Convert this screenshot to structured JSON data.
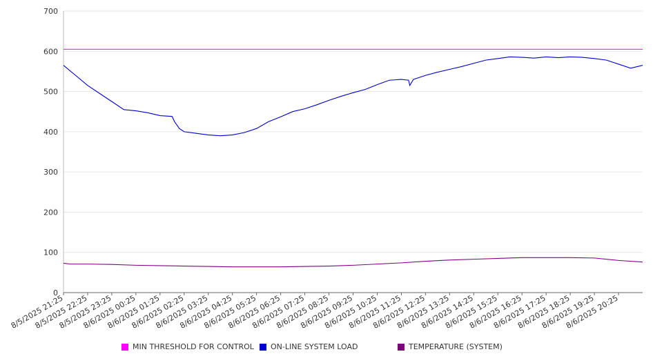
{
  "chart_data": {
    "type": "line",
    "title": "",
    "xlabel": "",
    "ylabel": "",
    "ylim": [
      0,
      700
    ],
    "yticks": [
      0,
      100,
      200,
      300,
      400,
      500,
      600,
      700
    ],
    "xlim": [
      0,
      24
    ],
    "grid": true,
    "legend_position": "bottom",
    "x_tick_labels": [
      "8/5/2025 21:25",
      "8/5/2025 22:25",
      "8/5/2025 23:25",
      "8/6/2025 00:25",
      "8/6/2025 01:25",
      "8/6/2025 02:25",
      "8/6/2025 03:25",
      "8/6/2025 04:25",
      "8/6/2025 05:25",
      "8/6/2025 06:25",
      "8/6/2025 07:25",
      "8/6/2025 08:25",
      "8/6/2025 09:25",
      "8/6/2025 10:25",
      "8/6/2025 11:25",
      "8/6/2025 12:25",
      "8/6/2025 13:25",
      "8/6/2025 14:25",
      "8/6/2025 15:25",
      "8/6/2025 16:25",
      "8/6/2025 17:25",
      "8/6/2025 18:25",
      "8/6/2025 19:25",
      "8/6/2025 20:25"
    ],
    "series": [
      {
        "name": "MIN THRESHOLD FOR CONTROL",
        "color": "#ff00ff",
        "x": [
          0,
          24
        ],
        "y": [
          605,
          605
        ]
      },
      {
        "name": "ON-LINE SYSTEM LOAD",
        "color": "#0000cc",
        "x": [
          0,
          0.5,
          1,
          1.5,
          2,
          2.5,
          3,
          3.5,
          4,
          4.5,
          4.6,
          4.8,
          5,
          5.5,
          6,
          6.5,
          7,
          7.5,
          8,
          8.5,
          9,
          9.5,
          10,
          10.5,
          11,
          11.5,
          12,
          12.5,
          13,
          13.5,
          14,
          14.3,
          14.35,
          14.5,
          15,
          15.5,
          16,
          16.5,
          17,
          17.5,
          18,
          18.5,
          19,
          19.5,
          20,
          20.5,
          21,
          21.5,
          22,
          22.5,
          23,
          23.5,
          24
        ],
        "y": [
          565,
          540,
          515,
          495,
          475,
          455,
          452,
          447,
          440,
          438,
          425,
          408,
          400,
          396,
          392,
          390,
          392,
          398,
          408,
          425,
          437,
          450,
          457,
          467,
          478,
          488,
          497,
          505,
          517,
          528,
          530,
          528,
          515,
          530,
          540,
          548,
          555,
          562,
          570,
          578,
          582,
          586,
          585,
          583,
          586,
          584,
          586,
          585,
          582,
          578,
          568,
          558,
          565
        ]
      },
      {
        "name": "TEMPERATURE (SYSTEM)",
        "color": "#800080",
        "x": [
          0,
          0.3,
          1,
          2,
          3,
          4,
          5,
          6,
          7,
          8,
          9,
          10,
          11,
          12,
          13,
          14,
          15,
          16,
          17,
          18,
          19,
          20,
          21,
          22,
          23,
          24
        ],
        "y": [
          73,
          71,
          71,
          70,
          68,
          67,
          66,
          65,
          64,
          64,
          64,
          65,
          66,
          68,
          71,
          74,
          78,
          81,
          83,
          85,
          87,
          87,
          87,
          86,
          80,
          76
        ]
      }
    ]
  }
}
